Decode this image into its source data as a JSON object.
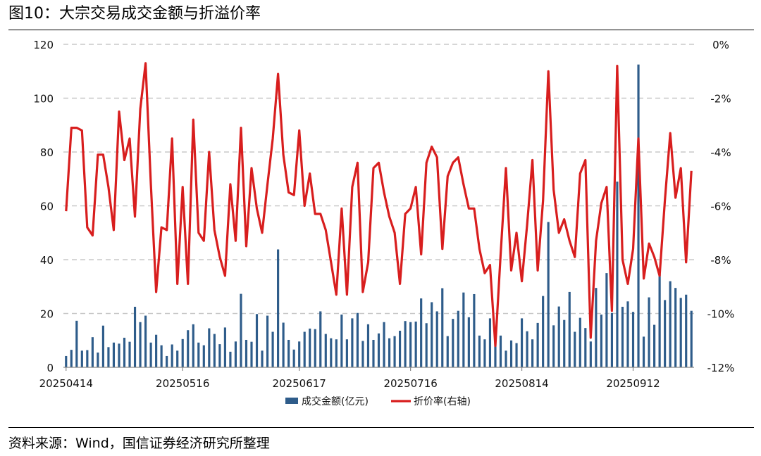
{
  "title": "图10：大宗交易成交金额与折溢价率",
  "source": "资料来源：Wind，国信证券经济研究所整理",
  "chart_data": {
    "type": "bar+line",
    "title": "图10：大宗交易成交金额与折溢价率",
    "x_tick_labels": [
      "20250414",
      "20250516",
      "20250617",
      "20250716",
      "20250814",
      "20250912"
    ],
    "x_tick_index": [
      0,
      22,
      44,
      65,
      86,
      107
    ],
    "y_left": {
      "min": 0,
      "max": 120,
      "ticks": [
        0,
        20,
        40,
        60,
        80,
        100,
        120
      ]
    },
    "y_right": {
      "min": -12,
      "max": 0,
      "ticks": [
        -12,
        -10,
        -8,
        -6,
        -4,
        -2,
        0
      ],
      "tick_labels": [
        "-12%",
        "-10%",
        "-8%",
        "-6%",
        "-4%",
        "-2%",
        "0%"
      ]
    },
    "grid": true,
    "legend_position": "bottom",
    "series": [
      {
        "name": "成交金额(亿元)",
        "type": "bar",
        "axis": "left",
        "color": "#2E5C8A",
        "values": [
          4.2,
          6.5,
          17.3,
          6.2,
          6.4,
          11.2,
          5.5,
          15.5,
          7.5,
          9.2,
          8.8,
          11.0,
          9.5,
          22.5,
          16.8,
          19.2,
          9.2,
          12.1,
          8.2,
          4.2,
          8.5,
          6.2,
          10.5,
          13.8,
          16.0,
          9.2,
          8.2,
          14.5,
          12.4,
          8.6,
          14.8,
          5.8,
          9.6,
          27.3,
          10.2,
          9.5,
          19.8,
          6.2,
          19.2,
          13.2,
          43.8,
          16.6,
          10.2,
          6.6,
          9.6,
          13.2,
          14.4,
          14.2,
          20.8,
          12.4,
          10.8,
          10.4,
          19.6,
          10.4,
          18.2,
          20.2,
          9.8,
          16.0,
          10.2,
          12.6,
          16.8,
          10.8,
          11.6,
          13.6,
          17.2,
          16.8,
          17.0,
          25.6,
          16.4,
          24.2,
          20.8,
          29.4,
          11.6,
          18.0,
          21.0,
          27.8,
          18.6,
          27.2,
          11.8,
          10.4,
          18.2,
          9.4,
          11.8,
          6.2,
          10.0,
          9.0,
          18.2,
          13.4,
          10.4,
          16.5,
          26.5,
          54.0,
          15.6,
          22.6,
          17.6,
          28.0,
          13.2,
          18.4,
          14.6,
          9.6,
          29.5,
          19.6,
          35.0,
          20.2,
          69.0,
          22.5,
          24.5,
          20.6,
          112.5,
          11.4,
          26.0,
          15.8,
          34.6,
          25.0,
          32.0,
          29.5,
          25.8,
          27.0,
          21.0
        ]
      },
      {
        "name": "折价率(右轴)",
        "type": "line",
        "axis": "right",
        "color": "#D81E1E",
        "values": [
          -6.2,
          -3.1,
          -3.1,
          -3.2,
          -6.8,
          -7.1,
          -4.1,
          -4.1,
          -5.3,
          -6.9,
          -2.5,
          -4.3,
          -3.5,
          -6.4,
          -2.4,
          -0.7,
          -5.2,
          -9.2,
          -6.8,
          -6.9,
          -3.5,
          -8.9,
          -5.3,
          -8.9,
          -2.8,
          -7.0,
          -7.3,
          -4.0,
          -6.9,
          -7.9,
          -8.6,
          -5.2,
          -7.3,
          -3.1,
          -7.5,
          -4.6,
          -6.1,
          -7.0,
          -5.2,
          -3.5,
          -1.1,
          -4.1,
          -5.5,
          -5.6,
          -3.2,
          -6.0,
          -4.8,
          -6.3,
          -6.3,
          -6.9,
          -8.1,
          -9.3,
          -6.1,
          -9.3,
          -5.3,
          -4.4,
          -9.2,
          -8.1,
          -4.6,
          -4.4,
          -5.5,
          -6.4,
          -7.0,
          -8.9,
          -6.3,
          -6.1,
          -5.3,
          -7.8,
          -4.4,
          -3.8,
          -4.2,
          -7.6,
          -4.9,
          -4.4,
          -4.2,
          -5.2,
          -6.1,
          -6.1,
          -7.6,
          -8.5,
          -8.2,
          -11.2,
          -7.8,
          -4.6,
          -8.4,
          -7.0,
          -8.8,
          -6.7,
          -4.3,
          -8.4,
          -5.8,
          -1.0,
          -5.4,
          -7.0,
          -6.5,
          -7.3,
          -7.9,
          -4.8,
          -4.3,
          -10.9,
          -7.3,
          -5.9,
          -5.3,
          -9.9,
          -0.8,
          -8.0,
          -8.9,
          -7.6,
          -3.5,
          -8.7,
          -7.4,
          -7.9,
          -8.6,
          -5.8,
          -3.3,
          -5.7,
          -4.6,
          -8.1,
          -4.7
        ]
      }
    ]
  }
}
